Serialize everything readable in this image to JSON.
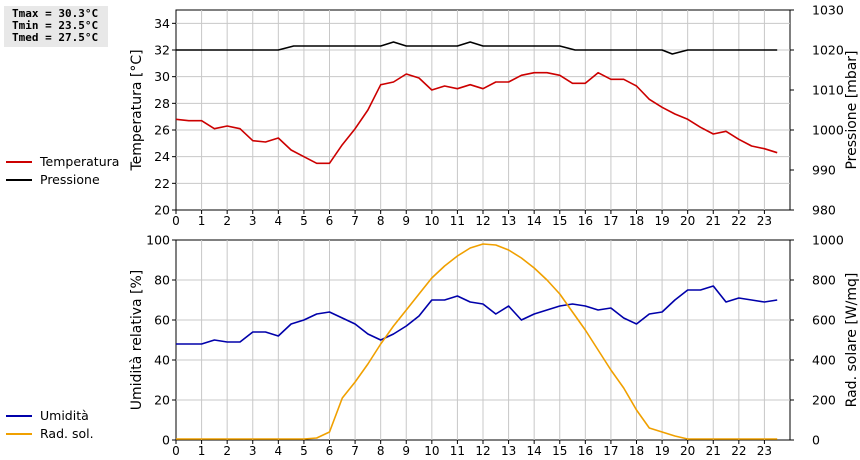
{
  "stats": {
    "tmax": "Tmax = 30.3°C",
    "tmin": "Tmin = 23.5°C",
    "tmed": "Tmed = 27.5°C"
  },
  "legend_top": [
    {
      "label": "Temperatura",
      "color": "#cc0000"
    },
    {
      "label": "Pressione",
      "color": "#000000"
    }
  ],
  "legend_bottom": [
    {
      "label": "Umidità",
      "color": "#0000aa"
    },
    {
      "label": "Rad. sol.",
      "color": "#f0a000"
    }
  ],
  "chart_data": [
    {
      "type": "line",
      "title": "",
      "xlabel": "",
      "ylabel_left": "Temperatura [°C]",
      "ylabel_right": "Pressione [mbar]",
      "xlim": [
        0,
        24
      ],
      "ylim_left": [
        20,
        35
      ],
      "ylim_right": [
        980,
        1030
      ],
      "x_ticks": [
        "0",
        "1",
        "2",
        "3",
        "4",
        "5",
        "6",
        "7",
        "8",
        "9",
        "10",
        "11",
        "12",
        "13",
        "14",
        "15",
        "16",
        "17",
        "18",
        "19",
        "20",
        "21",
        "22",
        "23"
      ],
      "yticks_left": [
        "20",
        "22",
        "24",
        "26",
        "28",
        "30",
        "32",
        "34"
      ],
      "yticks_right": [
        "980",
        "990",
        "1000",
        "1010",
        "1020",
        "1030"
      ],
      "grid": true,
      "series": [
        {
          "name": "Temperatura",
          "axis": "left",
          "color": "#cc0000",
          "x": [
            0,
            0.5,
            1,
            1.5,
            2,
            2.5,
            3,
            3.5,
            4,
            4.5,
            5,
            5.5,
            6,
            6.5,
            7,
            7.5,
            8,
            8.5,
            9,
            9.5,
            10,
            10.5,
            11,
            11.5,
            12,
            12.5,
            13,
            13.5,
            14,
            14.5,
            15,
            15.5,
            16,
            16.5,
            17,
            17.5,
            18,
            18.5,
            19,
            19.5,
            20,
            20.5,
            21,
            21.5,
            22,
            22.5,
            23,
            23.5
          ],
          "y": [
            26.8,
            26.7,
            26.7,
            26.1,
            26.3,
            26.1,
            25.2,
            25.1,
            25.4,
            24.5,
            24.0,
            23.5,
            23.5,
            24.9,
            26.1,
            27.5,
            29.4,
            29.6,
            30.2,
            29.9,
            29.0,
            29.3,
            29.1,
            29.4,
            29.1,
            29.6,
            29.6,
            30.1,
            30.3,
            30.3,
            30.1,
            29.5,
            29.5,
            30.3,
            29.8,
            29.8,
            29.3,
            28.3,
            27.7,
            27.2,
            26.8,
            26.2,
            25.7,
            25.9,
            25.3,
            24.8,
            24.6,
            24.3
          ]
        },
        {
          "name": "Pressione",
          "axis": "right",
          "color": "#000000",
          "x": [
            0,
            4,
            4.6,
            8,
            8.5,
            9,
            11,
            11.5,
            12,
            15,
            15.6,
            19,
            19.4,
            20,
            23.5
          ],
          "y": [
            1020,
            1020,
            1021,
            1021,
            1022,
            1021,
            1021,
            1022,
            1021,
            1021,
            1020,
            1020,
            1019,
            1020,
            1020
          ]
        }
      ]
    },
    {
      "type": "line",
      "title": "",
      "xlabel": "",
      "ylabel_left": "Umidità relativa [%]",
      "ylabel_right": "Rad. solare [W/mq]",
      "xlim": [
        0,
        24
      ],
      "ylim_left": [
        0,
        100
      ],
      "ylim_right": [
        0,
        1000
      ],
      "x_ticks": [
        "0",
        "1",
        "2",
        "3",
        "4",
        "5",
        "6",
        "7",
        "8",
        "9",
        "10",
        "11",
        "12",
        "13",
        "14",
        "15",
        "16",
        "17",
        "18",
        "19",
        "20",
        "21",
        "22",
        "23"
      ],
      "yticks_left": [
        "0",
        "20",
        "40",
        "60",
        "80",
        "100"
      ],
      "yticks_right": [
        "0",
        "200",
        "400",
        "600",
        "800",
        "1000"
      ],
      "grid": true,
      "series": [
        {
          "name": "Umidità",
          "axis": "left",
          "color": "#0000aa",
          "x": [
            0,
            0.5,
            1,
            1.5,
            2,
            2.5,
            3,
            3.5,
            4,
            4.5,
            5,
            5.5,
            6,
            6.5,
            7,
            7.5,
            8,
            8.5,
            9,
            9.5,
            10,
            10.5,
            11,
            11.5,
            12,
            12.5,
            13,
            13.5,
            14,
            14.5,
            15,
            15.5,
            16,
            16.5,
            17,
            17.5,
            18,
            18.5,
            19,
            19.5,
            20,
            20.5,
            21,
            21.5,
            22,
            22.5,
            23,
            23.5
          ],
          "y": [
            48,
            48,
            48,
            50,
            49,
            49,
            54,
            54,
            52,
            58,
            60,
            63,
            64,
            61,
            58,
            53,
            50,
            53,
            57,
            62,
            70,
            70,
            72,
            69,
            68,
            63,
            67,
            60,
            63,
            65,
            67,
            68,
            67,
            65,
            66,
            61,
            58,
            63,
            64,
            70,
            75,
            75,
            77,
            69,
            71,
            70,
            69,
            70
          ]
        },
        {
          "name": "Rad. sol.",
          "axis": "right",
          "color": "#f0a000",
          "x": [
            0,
            5,
            5.5,
            6,
            6.5,
            7,
            7.5,
            8,
            8.5,
            9,
            9.5,
            10,
            10.5,
            11,
            11.5,
            12,
            12.5,
            13,
            13.5,
            14,
            14.5,
            15,
            15.5,
            16,
            16.5,
            17,
            17.5,
            18,
            18.5,
            19,
            19.5,
            20,
            23.5
          ],
          "y": [
            5,
            5,
            10,
            40,
            210,
            290,
            380,
            480,
            570,
            650,
            730,
            810,
            870,
            920,
            960,
            980,
            975,
            950,
            910,
            860,
            800,
            730,
            640,
            550,
            450,
            350,
            260,
            150,
            60,
            40,
            20,
            5,
            5
          ]
        }
      ]
    }
  ]
}
